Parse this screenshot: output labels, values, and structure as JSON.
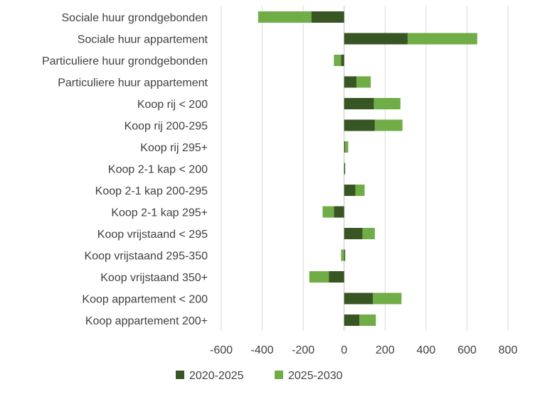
{
  "chart_data": {
    "type": "bar",
    "orientation": "horizontal",
    "stacked": true,
    "categories": [
      "Sociale huur grondgebonden",
      "Sociale huur appartement",
      "Particuliere huur grondgebonden",
      "Particuliere huur appartement",
      "Koop rij < 200",
      "Koop rij 200-295",
      "Koop rij 295+",
      "Koop 2-1 kap < 200",
      "Koop 2-1 kap 200-295",
      "Koop 2-1 kap 295+",
      "Koop vrijstaand < 295",
      "Koop vrijstaand 295-350",
      "Koop vrijstaand 350+",
      "Koop appartement < 200",
      "Koop appartement 200+"
    ],
    "series": [
      {
        "name": "2020-2025",
        "color": "#375623",
        "values": [
          -160,
          310,
          -15,
          60,
          145,
          150,
          5,
          5,
          55,
          -50,
          90,
          5,
          -75,
          140,
          75
        ]
      },
      {
        "name": "2025-2030",
        "color": "#70ad47",
        "values": [
          -260,
          340,
          -35,
          70,
          130,
          135,
          15,
          0,
          45,
          -55,
          60,
          -15,
          -95,
          140,
          80
        ]
      }
    ],
    "xlim": [
      -600,
      800
    ],
    "xticks": [
      "-600",
      "-400",
      "-200",
      "0",
      "200",
      "400",
      "600",
      "800"
    ],
    "grid": "vertical",
    "legend": "bottom"
  }
}
